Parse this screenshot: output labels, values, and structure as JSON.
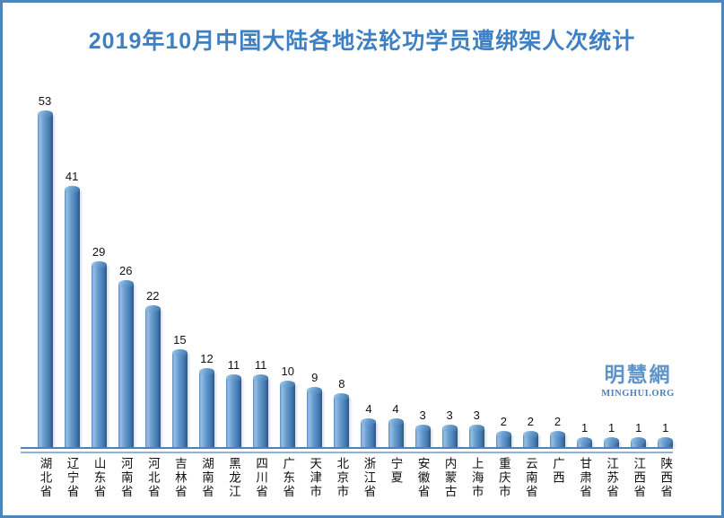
{
  "page": {
    "background": "#ffffff",
    "border_color": "#4e86ba"
  },
  "chart_data": {
    "type": "bar",
    "title": "2019年10月中国大陆各地法轮功学员遭绑架人次统计",
    "title_color": "#3e80c4",
    "categories": [
      "湖北省",
      "辽宁省",
      "山东省",
      "河南省",
      "河北省",
      "吉林省",
      "湖南省",
      "黑龙江",
      "四川省",
      "广东省",
      "天津市",
      "北京市",
      "浙江省",
      "宁夏",
      "安徽省",
      "内蒙古",
      "上海市",
      "重庆市",
      "云南省",
      "广西",
      "甘肃省",
      "江苏省",
      "江西省",
      "陕西省"
    ],
    "values": [
      53,
      41,
      29,
      26,
      22,
      15,
      12,
      11,
      11,
      10,
      9,
      8,
      4,
      4,
      3,
      3,
      3,
      2,
      2,
      2,
      1,
      1,
      1,
      1
    ],
    "xlabel": "",
    "ylabel": "",
    "ylim": [
      0,
      53
    ],
    "grid": false,
    "legend_position": "none",
    "bar_color": "#4f86be",
    "bar_highlight_color": "#93bde5",
    "bar_shadow_color": "#2f5784",
    "axis_line_color": "#4f81bd",
    "axis_line2_color": "#8fb2dc",
    "value_label_color": "#111111",
    "category_label_color": "#111111"
  },
  "watermark": {
    "title": "明慧網",
    "url_text": "MINGHUI.ORG",
    "color": "#6093c7"
  }
}
